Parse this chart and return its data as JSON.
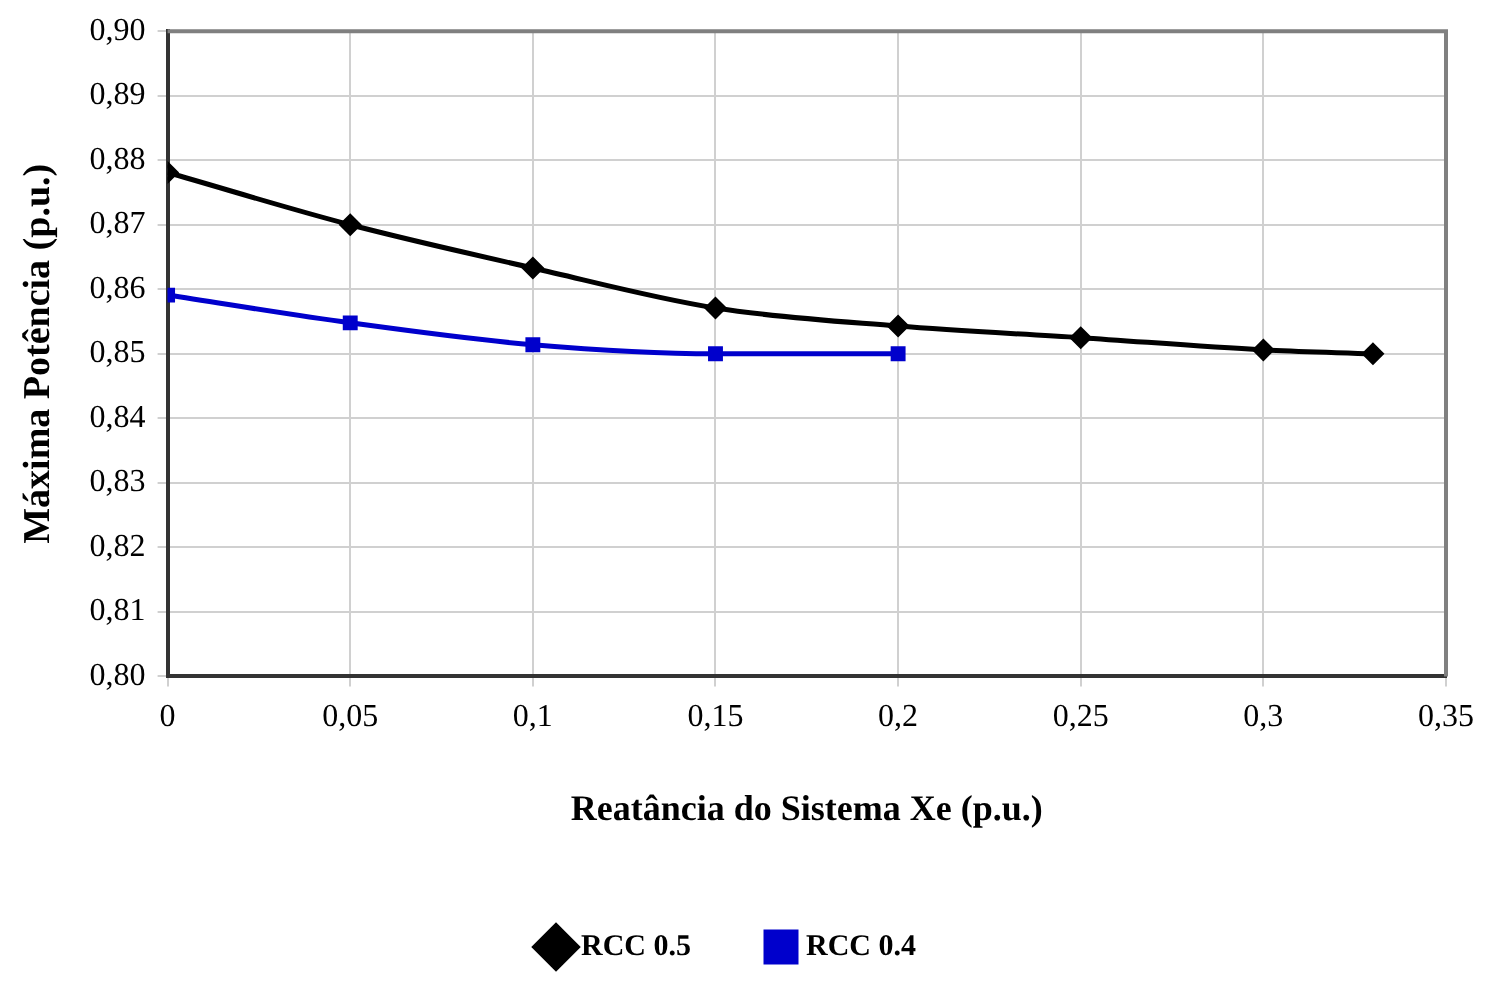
{
  "chart_data": {
    "type": "line",
    "xlabel": "Reatância do Sistema Xe (p.u.)",
    "ylabel": "Máxima Potência (p.u.)",
    "series": [
      {
        "name": "RCC 0.5",
        "color": "#000000",
        "marker": "diamond",
        "x": [
          0,
          0.05,
          0.1,
          0.15,
          0.2,
          0.25,
          0.3,
          0.33
        ],
        "values": [
          0.8781,
          0.87,
          0.8633,
          0.8571,
          0.8543,
          0.8525,
          0.8506,
          0.85
        ]
      },
      {
        "name": "RCC 0.4",
        "color": "#0000cc",
        "marker": "square",
        "x": [
          0,
          0.05,
          0.1,
          0.15,
          0.2
        ],
        "values": [
          0.8591,
          0.8548,
          0.8514,
          0.85,
          0.85
        ]
      }
    ],
    "xlim": [
      0,
      0.35
    ],
    "xticks": [
      0,
      {
        "value": 0.05,
        "label": "0,05"
      },
      {
        "value": 0.1,
        "label": "0,1"
      },
      {
        "value": 0.15,
        "label": "0,15"
      },
      {
        "value": 0.2,
        "label": "0,2"
      },
      {
        "value": 0.25,
        "label": "0,25"
      },
      {
        "value": 0.3,
        "label": "0,3"
      },
      {
        "value": 0.35,
        "label": "0,35"
      }
    ],
    "ylim": [
      0.8,
      0.9
    ],
    "yticks": [
      {
        "value": 0.8,
        "label": "0,80"
      },
      {
        "value": 0.81,
        "label": "0,81"
      },
      {
        "value": 0.82,
        "label": "0,82"
      },
      {
        "value": 0.83,
        "label": "0,83"
      },
      {
        "value": 0.84,
        "label": "0,84"
      },
      {
        "value": 0.85,
        "label": "0,85"
      },
      {
        "value": 0.86,
        "label": "0,86"
      },
      {
        "value": 0.87,
        "label": "0,87"
      },
      {
        "value": 0.88,
        "label": "0,88"
      },
      {
        "value": 0.89,
        "label": "0,89"
      },
      {
        "value": 0.9,
        "label": "0,90"
      }
    ],
    "grid": true,
    "legend": "bottom"
  }
}
